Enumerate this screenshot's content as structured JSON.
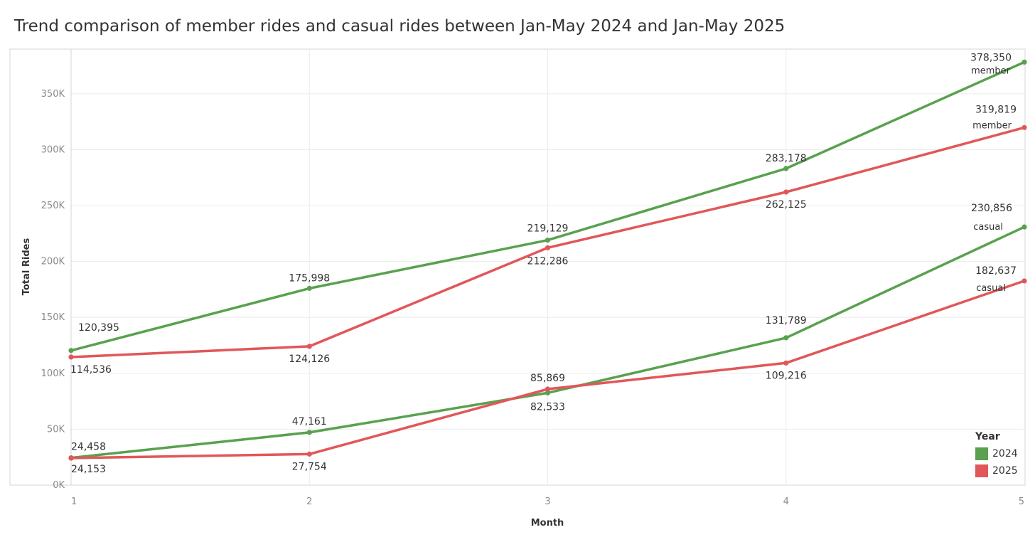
{
  "chart_data": {
    "type": "line",
    "title": "Trend comparison of member rides and casual rides between Jan-May 2024 and Jan-May 2025",
    "xlabel": "Month",
    "ylabel": "Total Rides",
    "x": [
      1,
      2,
      3,
      4,
      5
    ],
    "x_ticks": [
      "1",
      "2",
      "3",
      "4",
      "5"
    ],
    "ylim": [
      0,
      390000
    ],
    "y_ticks": [
      {
        "value": 0,
        "label": "0K"
      },
      {
        "value": 50000,
        "label": "50K"
      },
      {
        "value": 100000,
        "label": "100K"
      },
      {
        "value": 150000,
        "label": "150K"
      },
      {
        "value": 200000,
        "label": "200K"
      },
      {
        "value": 250000,
        "label": "250K"
      },
      {
        "value": 300000,
        "label": "300K"
      },
      {
        "value": 350000,
        "label": "350K"
      }
    ],
    "grid": true,
    "legend": {
      "title": "Year",
      "placement": "bottom-right",
      "entries": [
        {
          "label": "2024",
          "color": "#59a14f"
        },
        {
          "label": "2025",
          "color": "#e15759"
        }
      ]
    },
    "series": [
      {
        "year": "2024",
        "type_label": "member",
        "color": "#59a14f",
        "values": [
          120395,
          175998,
          219129,
          283178,
          378350
        ],
        "labels": [
          "120,395",
          "175,998",
          "219,129",
          "283,178",
          "378,350"
        ]
      },
      {
        "year": "2025",
        "type_label": "member",
        "color": "#e15759",
        "values": [
          114536,
          124126,
          212286,
          262125,
          319819
        ],
        "labels": [
          "114,536",
          "124,126",
          "212,286",
          "262,125",
          "319,819"
        ]
      },
      {
        "year": "2024",
        "type_label": "casual",
        "color": "#59a14f",
        "values": [
          24458,
          47161,
          82533,
          131789,
          230856
        ],
        "labels": [
          "24,458",
          "47,161",
          "82,533",
          "131,789",
          "230,856"
        ]
      },
      {
        "year": "2025",
        "type_label": "casual",
        "color": "#e15759",
        "values": [
          24153,
          27754,
          85869,
          109216,
          182637
        ],
        "labels": [
          "24,153",
          "27,754",
          "85,869",
          "109,216",
          "182,637"
        ]
      }
    ]
  }
}
